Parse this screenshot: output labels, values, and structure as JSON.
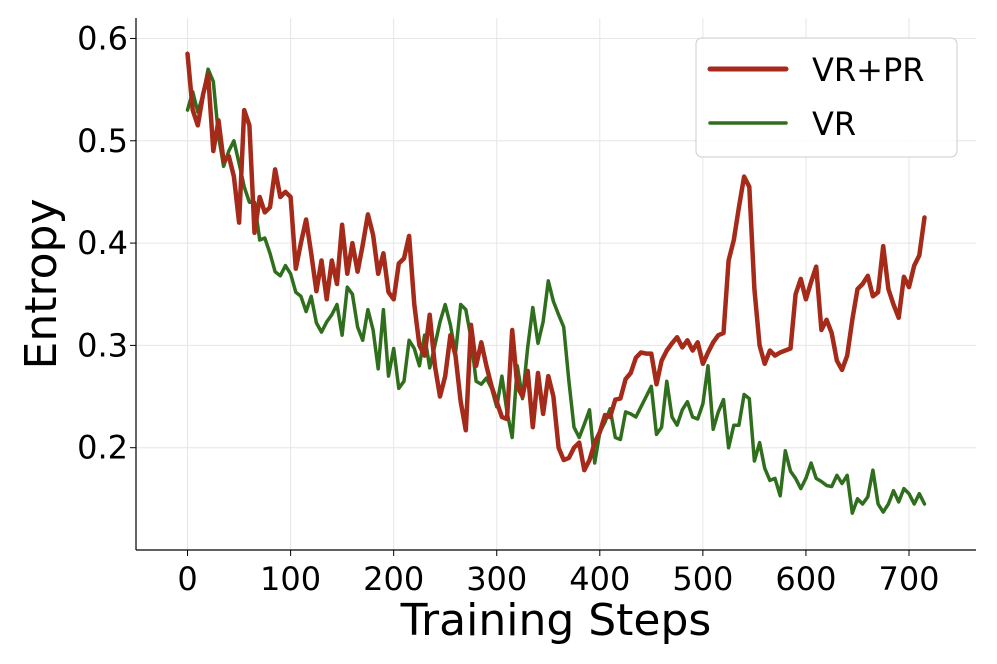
{
  "chart_data": {
    "type": "line",
    "title": "",
    "xlabel": "Training Steps",
    "ylabel": "Entropy",
    "xlim": [
      -50,
      765
    ],
    "ylim": [
      0.1,
      0.62
    ],
    "xticks": [
      0,
      100,
      200,
      300,
      400,
      500,
      600,
      700
    ],
    "yticks": [
      0.2,
      0.3,
      0.4,
      0.5,
      0.6
    ],
    "xtick_labels": [
      "0",
      "100",
      "200",
      "300",
      "400",
      "500",
      "600",
      "700"
    ],
    "ytick_labels": [
      "0.2",
      "0.3",
      "0.4",
      "0.5",
      "0.6"
    ],
    "grid": true,
    "legend_position": "top-right",
    "series": [
      {
        "name": "VR+PR",
        "color": "#a52a1a",
        "x": [
          0,
          5,
          10,
          15,
          20,
          25,
          30,
          35,
          40,
          45,
          50,
          55,
          60,
          65,
          70,
          75,
          80,
          85,
          90,
          95,
          100,
          105,
          110,
          115,
          120,
          125,
          130,
          135,
          140,
          145,
          150,
          155,
          160,
          165,
          170,
          175,
          180,
          185,
          190,
          195,
          200,
          205,
          210,
          215,
          220,
          225,
          230,
          235,
          240,
          245,
          250,
          255,
          260,
          265,
          270,
          275,
          280,
          285,
          290,
          295,
          300,
          305,
          310,
          315,
          320,
          325,
          330,
          335,
          340,
          345,
          350,
          355,
          360,
          365,
          370,
          375,
          380,
          385,
          390,
          395,
          400,
          405,
          410,
          415,
          420,
          425,
          430,
          435,
          440,
          445,
          450,
          455,
          460,
          465,
          470,
          475,
          480,
          485,
          490,
          495,
          500,
          505,
          510,
          515,
          520,
          525,
          530,
          535,
          540,
          545,
          550,
          555,
          560,
          565,
          570,
          575,
          580,
          585,
          590,
          595,
          600,
          605,
          610,
          615,
          620,
          625,
          630,
          635,
          640,
          645,
          650,
          655,
          660,
          665,
          670,
          675,
          680,
          685,
          690,
          695,
          700,
          705,
          710,
          715
        ],
        "values": [
          0.585,
          0.53,
          0.515,
          0.545,
          0.565,
          0.49,
          0.52,
          0.48,
          0.485,
          0.465,
          0.42,
          0.53,
          0.515,
          0.41,
          0.445,
          0.43,
          0.435,
          0.472,
          0.445,
          0.45,
          0.445,
          0.375,
          0.4,
          0.423,
          0.39,
          0.353,
          0.383,
          0.345,
          0.383,
          0.36,
          0.418,
          0.37,
          0.4,
          0.372,
          0.398,
          0.428,
          0.408,
          0.37,
          0.39,
          0.352,
          0.345,
          0.38,
          0.385,
          0.407,
          0.34,
          0.3,
          0.29,
          0.33,
          0.28,
          0.25,
          0.27,
          0.31,
          0.29,
          0.245,
          0.217,
          0.32,
          0.28,
          0.303,
          0.28,
          0.26,
          0.245,
          0.23,
          0.228,
          0.315,
          0.26,
          0.25,
          0.275,
          0.22,
          0.273,
          0.233,
          0.27,
          0.25,
          0.2,
          0.188,
          0.19,
          0.2,
          0.205,
          0.178,
          0.188,
          0.205,
          0.215,
          0.232,
          0.23,
          0.247,
          0.248,
          0.267,
          0.273,
          0.288,
          0.293,
          0.292,
          0.292,
          0.262,
          0.285,
          0.295,
          0.302,
          0.308,
          0.298,
          0.305,
          0.295,
          0.303,
          0.282,
          0.293,
          0.303,
          0.31,
          0.312,
          0.383,
          0.403,
          0.435,
          0.465,
          0.455,
          0.355,
          0.3,
          0.282,
          0.295,
          0.29,
          0.293,
          0.295,
          0.297,
          0.35,
          0.365,
          0.345,
          0.362,
          0.377,
          0.315,
          0.325,
          0.312,
          0.285,
          0.276,
          0.29,
          0.325,
          0.355,
          0.36,
          0.368,
          0.348,
          0.352,
          0.397,
          0.355,
          0.34,
          0.327,
          0.367,
          0.357,
          0.378,
          0.388,
          0.425
        ]
      },
      {
        "name": "VR",
        "color": "#2e6e1c",
        "x": [
          0,
          5,
          10,
          15,
          20,
          25,
          30,
          35,
          40,
          45,
          50,
          55,
          60,
          65,
          70,
          75,
          80,
          85,
          90,
          95,
          100,
          105,
          110,
          115,
          120,
          125,
          130,
          135,
          140,
          145,
          150,
          155,
          160,
          165,
          170,
          175,
          180,
          185,
          190,
          195,
          200,
          205,
          210,
          215,
          220,
          225,
          230,
          235,
          240,
          245,
          250,
          255,
          260,
          265,
          270,
          275,
          280,
          285,
          290,
          295,
          300,
          305,
          310,
          315,
          320,
          325,
          330,
          335,
          340,
          345,
          350,
          355,
          360,
          365,
          370,
          375,
          380,
          385,
          390,
          395,
          400,
          405,
          410,
          415,
          420,
          425,
          430,
          435,
          440,
          445,
          450,
          455,
          460,
          465,
          470,
          475,
          480,
          485,
          490,
          495,
          500,
          505,
          510,
          515,
          520,
          525,
          530,
          535,
          540,
          545,
          550,
          555,
          560,
          565,
          570,
          575,
          580,
          585,
          590,
          595,
          600,
          605,
          610,
          615,
          620,
          625,
          630,
          635,
          640,
          645,
          650,
          655,
          660,
          665,
          670,
          675,
          680,
          685,
          690,
          695,
          700,
          705,
          710,
          715
        ],
        "values": [
          0.53,
          0.548,
          0.528,
          0.545,
          0.57,
          0.558,
          0.505,
          0.475,
          0.49,
          0.5,
          0.478,
          0.455,
          0.44,
          0.44,
          0.403,
          0.405,
          0.39,
          0.372,
          0.368,
          0.378,
          0.37,
          0.352,
          0.348,
          0.333,
          0.348,
          0.322,
          0.313,
          0.323,
          0.33,
          0.34,
          0.31,
          0.357,
          0.35,
          0.318,
          0.305,
          0.335,
          0.315,
          0.277,
          0.335,
          0.27,
          0.297,
          0.258,
          0.265,
          0.305,
          0.297,
          0.28,
          0.31,
          0.278,
          0.3,
          0.323,
          0.34,
          0.32,
          0.292,
          0.34,
          0.335,
          0.307,
          0.265,
          0.262,
          0.268,
          0.258,
          0.24,
          0.27,
          0.235,
          0.21,
          0.28,
          0.248,
          0.298,
          0.337,
          0.302,
          0.323,
          0.363,
          0.343,
          0.33,
          0.318,
          0.265,
          0.22,
          0.21,
          0.223,
          0.237,
          0.185,
          0.215,
          0.225,
          0.238,
          0.21,
          0.208,
          0.235,
          0.233,
          0.23,
          0.24,
          0.25,
          0.26,
          0.213,
          0.22,
          0.265,
          0.23,
          0.222,
          0.237,
          0.245,
          0.23,
          0.228,
          0.243,
          0.28,
          0.218,
          0.235,
          0.247,
          0.2,
          0.222,
          0.222,
          0.252,
          0.248,
          0.187,
          0.205,
          0.18,
          0.168,
          0.17,
          0.153,
          0.197,
          0.177,
          0.17,
          0.16,
          0.17,
          0.185,
          0.17,
          0.167,
          0.163,
          0.162,
          0.173,
          0.165,
          0.173,
          0.136,
          0.15,
          0.145,
          0.152,
          0.178,
          0.145,
          0.137,
          0.145,
          0.158,
          0.147,
          0.16,
          0.155,
          0.145,
          0.155,
          0.145
        ]
      }
    ]
  }
}
